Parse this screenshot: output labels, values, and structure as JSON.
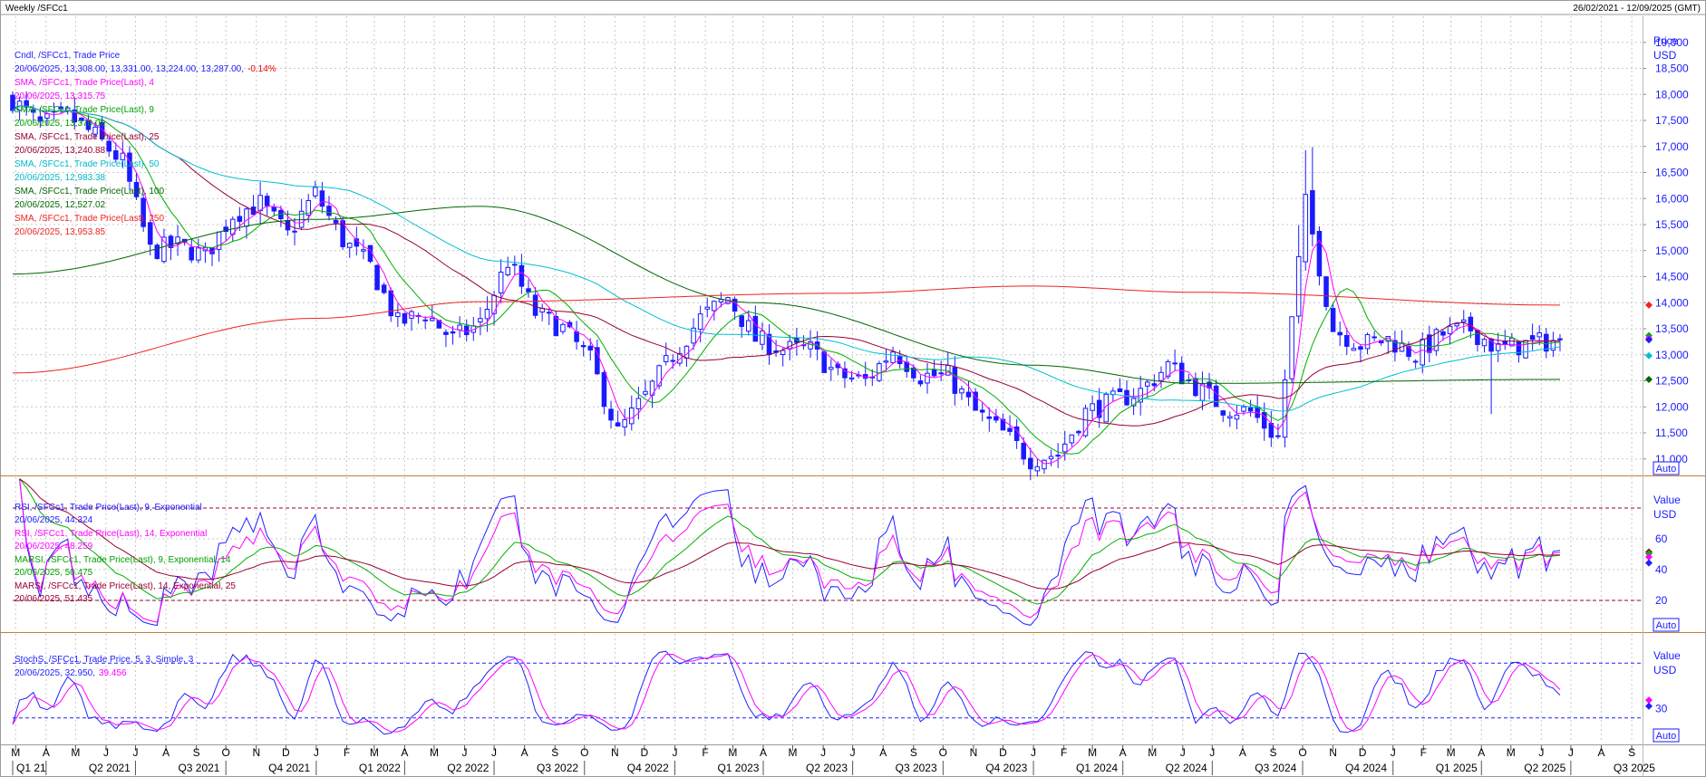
{
  "header": {
    "title": "Weekly /SFCc1",
    "date_range": "26/02/2021 - 12/09/2025 (GMT)"
  },
  "colors": {
    "candle": "#1a1aff",
    "sma4": "#ff00ff",
    "sma9": "#00b000",
    "sma25": "#990033",
    "sma50": "#00c0d0",
    "sma100": "#006600",
    "sma250": "#ee2222",
    "grid": "#c8c8c8",
    "frame": "#c08040",
    "rsi9": "#2020ff",
    "rsi14": "#ff00ff",
    "marsi9": "#00b000",
    "marsi14": "#990033",
    "stoch_k": "#2020ff",
    "stoch_d": "#ff00ff",
    "level_line": "#990033",
    "stoch_level": "#2020ff"
  },
  "price_panel": {
    "axis_title": "Price",
    "axis_unit": "USD",
    "auto_label": "Auto",
    "ticks": [
      "19,000",
      "18,500",
      "18,000",
      "17,500",
      "17,000",
      "16,500",
      "16,000",
      "15,500",
      "15,000",
      "14,500",
      "14,000",
      "13,500",
      "13,000",
      "12,500",
      "12,000",
      "11,500",
      "11,000"
    ],
    "legend": [
      {
        "label": "Cndl, /SFCc1, Trade Price",
        "value": "20/06/2025, 13,308.00, 13,331.00, 13,224.00, 13,287.00,",
        "change": "-0.14%",
        "color": "#1a1aff"
      },
      {
        "label": "SMA, /SFCc1, Trade Price(Last), 4",
        "value": "20/06/2025, 13,315.75",
        "color": "#ff00ff"
      },
      {
        "label": "SMA, /SFCc1, Trade Price(Last), 9",
        "value": "20/06/2025, 13,370.00",
        "color": "#00a000"
      },
      {
        "label": "SMA, /SFCc1, Trade Price(Last), 25",
        "value": "20/06/2025, 13,240.88",
        "color": "#990033"
      },
      {
        "label": "SMA, /SFCc1, Trade Price(Last), 50",
        "value": "20/06/2025, 12,983.38",
        "color": "#00b8c8"
      },
      {
        "label": "SMA, /SFCc1, Trade Price(Last), 100",
        "value": "20/06/2025, 12,527.02",
        "color": "#006600"
      },
      {
        "label": "SMA, /SFCc1, Trade Price(Last), 250",
        "value": "20/06/2025, 13,953.85",
        "color": "#ee2222"
      }
    ]
  },
  "rsi_panel": {
    "axis_title": "Value",
    "axis_unit": "USD",
    "auto_label": "Auto",
    "ticks": [
      "60",
      "40",
      "20"
    ],
    "levels": [
      80,
      20
    ],
    "legend": [
      {
        "label": "RSI, /SFCc1, Trade Price(Last),  9, Exponential",
        "value": "20/06/2025, 44.324",
        "color": "#2020ff"
      },
      {
        "label": "RSI, /SFCc1, Trade Price(Last),  14, Exponential",
        "value": "20/06/2025, 48.259",
        "color": "#ff00ff"
      },
      {
        "label": "MARSI, /SFCc1, Trade Price(Last),  9, Exponential, 14",
        "value": "20/06/2025, 50.475",
        "color": "#00a000"
      },
      {
        "label": "MARSI, /SFCc1, Trade Price(Last),  14, Exponential, 25",
        "value": "20/06/2025, 51.435",
        "color": "#990033"
      }
    ]
  },
  "stoch_panel": {
    "axis_title": "Value",
    "axis_unit": "USD",
    "auto_label": "Auto",
    "ticks": [
      "30"
    ],
    "levels": [
      80,
      20
    ],
    "legend": [
      {
        "label": "StochS, /SFCc1, Trade Price,  5, 3, Simple, 3",
        "value": "20/06/2025, 32.950,",
        "value2": "39.456",
        "color": "#2020ff"
      }
    ]
  },
  "x_axis": {
    "months": [
      "M",
      "A",
      "M",
      "J",
      "J",
      "A",
      "S",
      "O",
      "N",
      "D",
      "J",
      "F",
      "M",
      "A",
      "M",
      "J",
      "J",
      "A",
      "S",
      "O",
      "N",
      "D",
      "J",
      "F",
      "M",
      "A",
      "M",
      "J",
      "J",
      "A",
      "S",
      "O",
      "N",
      "D",
      "J",
      "F",
      "M",
      "A",
      "M",
      "J",
      "J",
      "A",
      "S",
      "O",
      "N",
      "D",
      "J",
      "F",
      "M",
      "A",
      "M",
      "J",
      "J",
      "A",
      "S"
    ],
    "quarters": [
      "Q1 21",
      "Q2 2021",
      "Q3 2021",
      "Q4 2021",
      "Q1 2022",
      "Q2 2022",
      "Q3 2022",
      "Q4 2022",
      "Q1 2023",
      "Q2 2023",
      "Q3 2023",
      "Q4 2023",
      "Q1 2024",
      "Q2 2024",
      "Q3 2024",
      "Q4 2024",
      "Q1 2025",
      "Q2 2025",
      "Q3 2025"
    ]
  },
  "chart_data": {
    "type": "candlestick",
    "series": [
      {
        "name": "Cndl, /SFCc1, Trade Price",
        "last": {
          "date": "20/06/2025",
          "open": 13308,
          "high": 13331,
          "low": 13224,
          "close": 13287,
          "change": "-0.14%"
        }
      },
      {
        "name": "SMA 4",
        "last": 13315.75
      },
      {
        "name": "SMA 9",
        "last": 13370.0
      },
      {
        "name": "SMA 25",
        "last": 13240.88
      },
      {
        "name": "SMA 50",
        "last": 12983.38
      },
      {
        "name": "SMA 100",
        "last": 12527.02
      },
      {
        "name": "SMA 250",
        "last": 13953.85
      }
    ],
    "close_path": [
      [
        "2021-02-26",
        17900
      ],
      [
        "2021-03-26",
        17400
      ],
      [
        "2021-04-23",
        17600
      ],
      [
        "2021-05-21",
        17200
      ],
      [
        "2021-06-18",
        16700
      ],
      [
        "2021-07-16",
        15000
      ],
      [
        "2021-08-13",
        15100
      ],
      [
        "2021-09-10",
        14900
      ],
      [
        "2021-10-08",
        15700
      ],
      [
        "2021-11-05",
        15900
      ],
      [
        "2021-12-03",
        15300
      ],
      [
        "2021-12-31",
        16100
      ],
      [
        "2022-01-28",
        15200
      ],
      [
        "2022-02-25",
        14700
      ],
      [
        "2022-03-25",
        13600
      ],
      [
        "2022-04-22",
        13800
      ],
      [
        "2022-05-20",
        13300
      ],
      [
        "2022-06-17",
        13600
      ],
      [
        "2022-07-15",
        14800
      ],
      [
        "2022-08-12",
        13800
      ],
      [
        "2022-09-09",
        13500
      ],
      [
        "2022-10-07",
        12900
      ],
      [
        "2022-11-04",
        11500
      ],
      [
        "2022-12-02",
        12200
      ],
      [
        "2022-12-30",
        13000
      ],
      [
        "2023-01-27",
        13700
      ],
      [
        "2023-02-24",
        14100
      ],
      [
        "2023-03-24",
        13300
      ],
      [
        "2023-04-21",
        13100
      ],
      [
        "2023-05-19",
        13100
      ],
      [
        "2023-06-16",
        12600
      ],
      [
        "2023-07-14",
        12500
      ],
      [
        "2023-08-11",
        13100
      ],
      [
        "2023-09-08",
        12600
      ],
      [
        "2023-10-06",
        12600
      ],
      [
        "2023-11-03",
        11900
      ],
      [
        "2023-12-01",
        11500
      ],
      [
        "2023-12-29",
        11000
      ],
      [
        "2024-01-26",
        11100
      ],
      [
        "2024-02-23",
        11900
      ],
      [
        "2024-03-22",
        12100
      ],
      [
        "2024-04-19",
        12300
      ],
      [
        "2024-05-17",
        12800
      ],
      [
        "2024-06-14",
        12400
      ],
      [
        "2024-07-12",
        12000
      ],
      [
        "2024-08-09",
        11900
      ],
      [
        "2024-09-06",
        11400
      ],
      [
        "2024-10-04",
        15900
      ],
      [
        "2024-11-01",
        13500
      ],
      [
        "2024-11-29",
        13200
      ],
      [
        "2024-12-27",
        13300
      ],
      [
        "2025-01-24",
        13000
      ],
      [
        "2025-02-21",
        13400
      ],
      [
        "2025-03-21",
        13500
      ],
      [
        "2025-04-18",
        13100
      ],
      [
        "2025-05-16",
        13200
      ],
      [
        "2025-06-20",
        13287
      ]
    ],
    "sma250_path": [
      [
        "2021-02-26",
        12650
      ],
      [
        "2021-12-31",
        13700
      ],
      [
        "2022-06-17",
        14020
      ],
      [
        "2023-06-16",
        14180
      ],
      [
        "2023-12-29",
        14320
      ],
      [
        "2024-06-14",
        14200
      ],
      [
        "2025-06-20",
        13954
      ]
    ],
    "sma100_path": [
      [
        "2021-02-26",
        14550
      ],
      [
        "2021-12-31",
        15600
      ],
      [
        "2022-06-17",
        15850
      ],
      [
        "2023-03-24",
        14000
      ],
      [
        "2023-12-29",
        12800
      ],
      [
        "2024-06-14",
        12450
      ],
      [
        "2025-06-20",
        12527
      ]
    ],
    "stoch_last": {
      "k": 32.95,
      "d": 39.456
    },
    "rsi_last": {
      "rsi9": 44.324,
      "rsi14": 48.259,
      "marsi9": 50.475,
      "marsi14": 51.435
    },
    "ylim": [
      10700,
      19500
    ],
    "grid": true
  }
}
